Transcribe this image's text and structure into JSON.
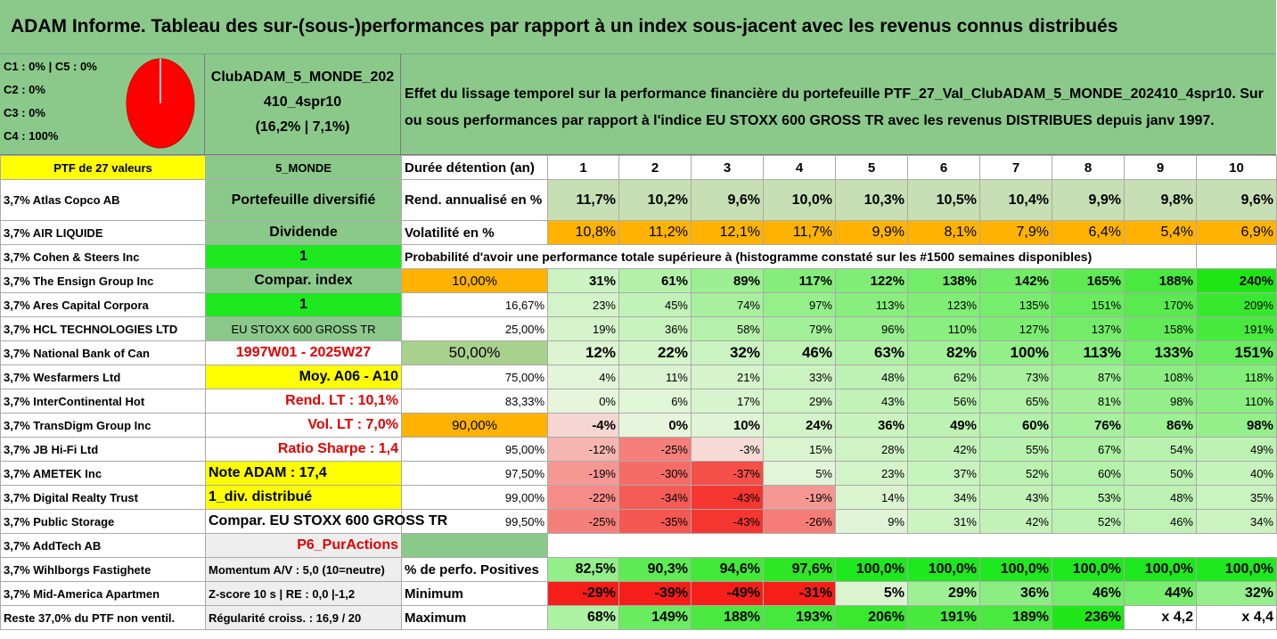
{
  "title": "ADAM Informe. Tableau des sur-(sous-)performances par rapport à un index sous-jacent avec les revenus connus distribués",
  "pie_legend": [
    "C1 : 0% | C5 : 0%",
    "C2 : 0%",
    "C3 : 0%",
    "C4 : 100%"
  ],
  "pie": {
    "c4": 100,
    "color": "#ff0000"
  },
  "fund": {
    "name_line1": "ClubADAM_5_MONDE_202",
    "name_line2": "410_4spr10",
    "name_line3": "(16,2% | 7,1%)"
  },
  "description_line1": "Effet du lissage temporel sur la performance financière du portefeuille PTF_27_Val_ClubADAM_5_MONDE_202410_4spr10. Sur",
  "description_line2": "ou sous performances par rapport à l'indice EU STOXX 600 GROSS TR avec les revenus DISTRIBUES depuis janv 1997.",
  "holdings_header": "PTF de 27 valeurs",
  "holdings": [
    "3,7% Atlas Copco AB",
    "3,7% AIR LIQUIDE",
    "3,7% Cohen & Steers Inc",
    "3,7% The Ensign Group Inc",
    "3,7% Ares Capital Corpora",
    "3,7% HCL TECHNOLOGIES LTD",
    "3,7% National Bank of Can",
    "3,7% Wesfarmers Ltd",
    "3,7% InterContinental Hot",
    "3,7% TransDigm Group Inc",
    "3,7% JB Hi-Fi Ltd",
    "3,7% AMETEK Inc",
    "3,7% Digital Realty Trust",
    "3,7% Public Storage",
    "3,7% AddTech AB",
    "3,7% Wihlborgs Fastighete",
    "3,7% Mid-America Apartmen",
    "Reste 37,0% du PTF non ventil."
  ],
  "info": [
    "5_MONDE",
    "Portefeuille diversifié",
    "Dividende",
    "1",
    "Compar. index",
    "1",
    "EU STOXX 600 GROSS TR",
    "1997W01 - 2025W27",
    "Moy. A06 - A10",
    "Rend. LT : 10,1%",
    "Vol. LT : 7,0%",
    "Ratio Sharpe : 1,4",
    "Note ADAM : 17,4",
    "1_div. distribué",
    "Compar. EU STOXX 600 GROSS TR",
    "P6_PurActions",
    "Momentum A/V : 5,0 (10=neutre)",
    "Z-score 10 s | RE : 0,0 |-1,2",
    "Régularité croiss. : 16,9 / 20"
  ],
  "labels": {
    "duration": "Durée détention (an)",
    "rend": "Rend. annualisé en %",
    "vol": "Volatilité en %",
    "prob": "Probabilité d'avoir une performance totale supérieure à (histogramme constaté sur les #1500 semaines disponibles)",
    "positive": "% de perfo. Positives",
    "minimum": "Minimum",
    "maximum": "Maximum"
  },
  "years": [
    "1",
    "2",
    "3",
    "4",
    "5",
    "6",
    "7",
    "8",
    "9",
    "10"
  ],
  "rend": [
    "11,7%",
    "10,2%",
    "9,6%",
    "10,0%",
    "10,3%",
    "10,5%",
    "10,4%",
    "9,9%",
    "9,8%",
    "9,6%"
  ],
  "vol": [
    "10,8%",
    "11,2%",
    "12,1%",
    "11,7%",
    "9,9%",
    "8,1%",
    "7,9%",
    "6,4%",
    "5,4%",
    "6,9%"
  ],
  "prob_rows": [
    {
      "p": "10,00%",
      "v": [
        "31%",
        "61%",
        "89%",
        "117%",
        "122%",
        "138%",
        "142%",
        "165%",
        "188%",
        "240%"
      ]
    },
    {
      "p": "16,67%",
      "v": [
        "23%",
        "45%",
        "74%",
        "97%",
        "113%",
        "123%",
        "135%",
        "151%",
        "170%",
        "209%"
      ]
    },
    {
      "p": "25,00%",
      "v": [
        "19%",
        "36%",
        "58%",
        "79%",
        "96%",
        "110%",
        "127%",
        "137%",
        "158%",
        "191%"
      ]
    },
    {
      "p": "50,00%",
      "v": [
        "12%",
        "22%",
        "32%",
        "46%",
        "63%",
        "82%",
        "100%",
        "113%",
        "133%",
        "151%"
      ]
    },
    {
      "p": "75,00%",
      "v": [
        "4%",
        "11%",
        "21%",
        "33%",
        "48%",
        "62%",
        "73%",
        "87%",
        "108%",
        "118%"
      ]
    },
    {
      "p": "83,33%",
      "v": [
        "0%",
        "6%",
        "17%",
        "29%",
        "43%",
        "56%",
        "65%",
        "81%",
        "98%",
        "110%"
      ]
    },
    {
      "p": "90,00%",
      "v": [
        "-4%",
        "0%",
        "10%",
        "24%",
        "36%",
        "49%",
        "60%",
        "76%",
        "86%",
        "98%"
      ]
    },
    {
      "p": "95,00%",
      "v": [
        "-12%",
        "-25%",
        "-3%",
        "15%",
        "28%",
        "42%",
        "55%",
        "67%",
        "54%",
        "49%"
      ]
    },
    {
      "p": "97,50%",
      "v": [
        "-19%",
        "-30%",
        "-37%",
        "5%",
        "23%",
        "37%",
        "52%",
        "60%",
        "50%",
        "40%"
      ]
    },
    {
      "p": "99,00%",
      "v": [
        "-22%",
        "-34%",
        "-43%",
        "-19%",
        "14%",
        "34%",
        "43%",
        "53%",
        "48%",
        "35%"
      ]
    },
    {
      "p": "99,50%",
      "v": [
        "-25%",
        "-35%",
        "-43%",
        "-26%",
        "9%",
        "31%",
        "42%",
        "52%",
        "46%",
        "34%"
      ]
    }
  ],
  "positive": [
    "82,5%",
    "90,3%",
    "94,6%",
    "97,6%",
    "100,0%",
    "100,0%",
    "100,0%",
    "100,0%",
    "100,0%",
    "100,0%"
  ],
  "minimum": [
    "-29%",
    "-39%",
    "-49%",
    "-31%",
    "5%",
    "29%",
    "36%",
    "46%",
    "44%",
    "32%"
  ],
  "maximum": [
    "68%",
    "149%",
    "188%",
    "193%",
    "206%",
    "191%",
    "189%",
    "236%",
    "x 4,2",
    "x 4,4"
  ]
}
